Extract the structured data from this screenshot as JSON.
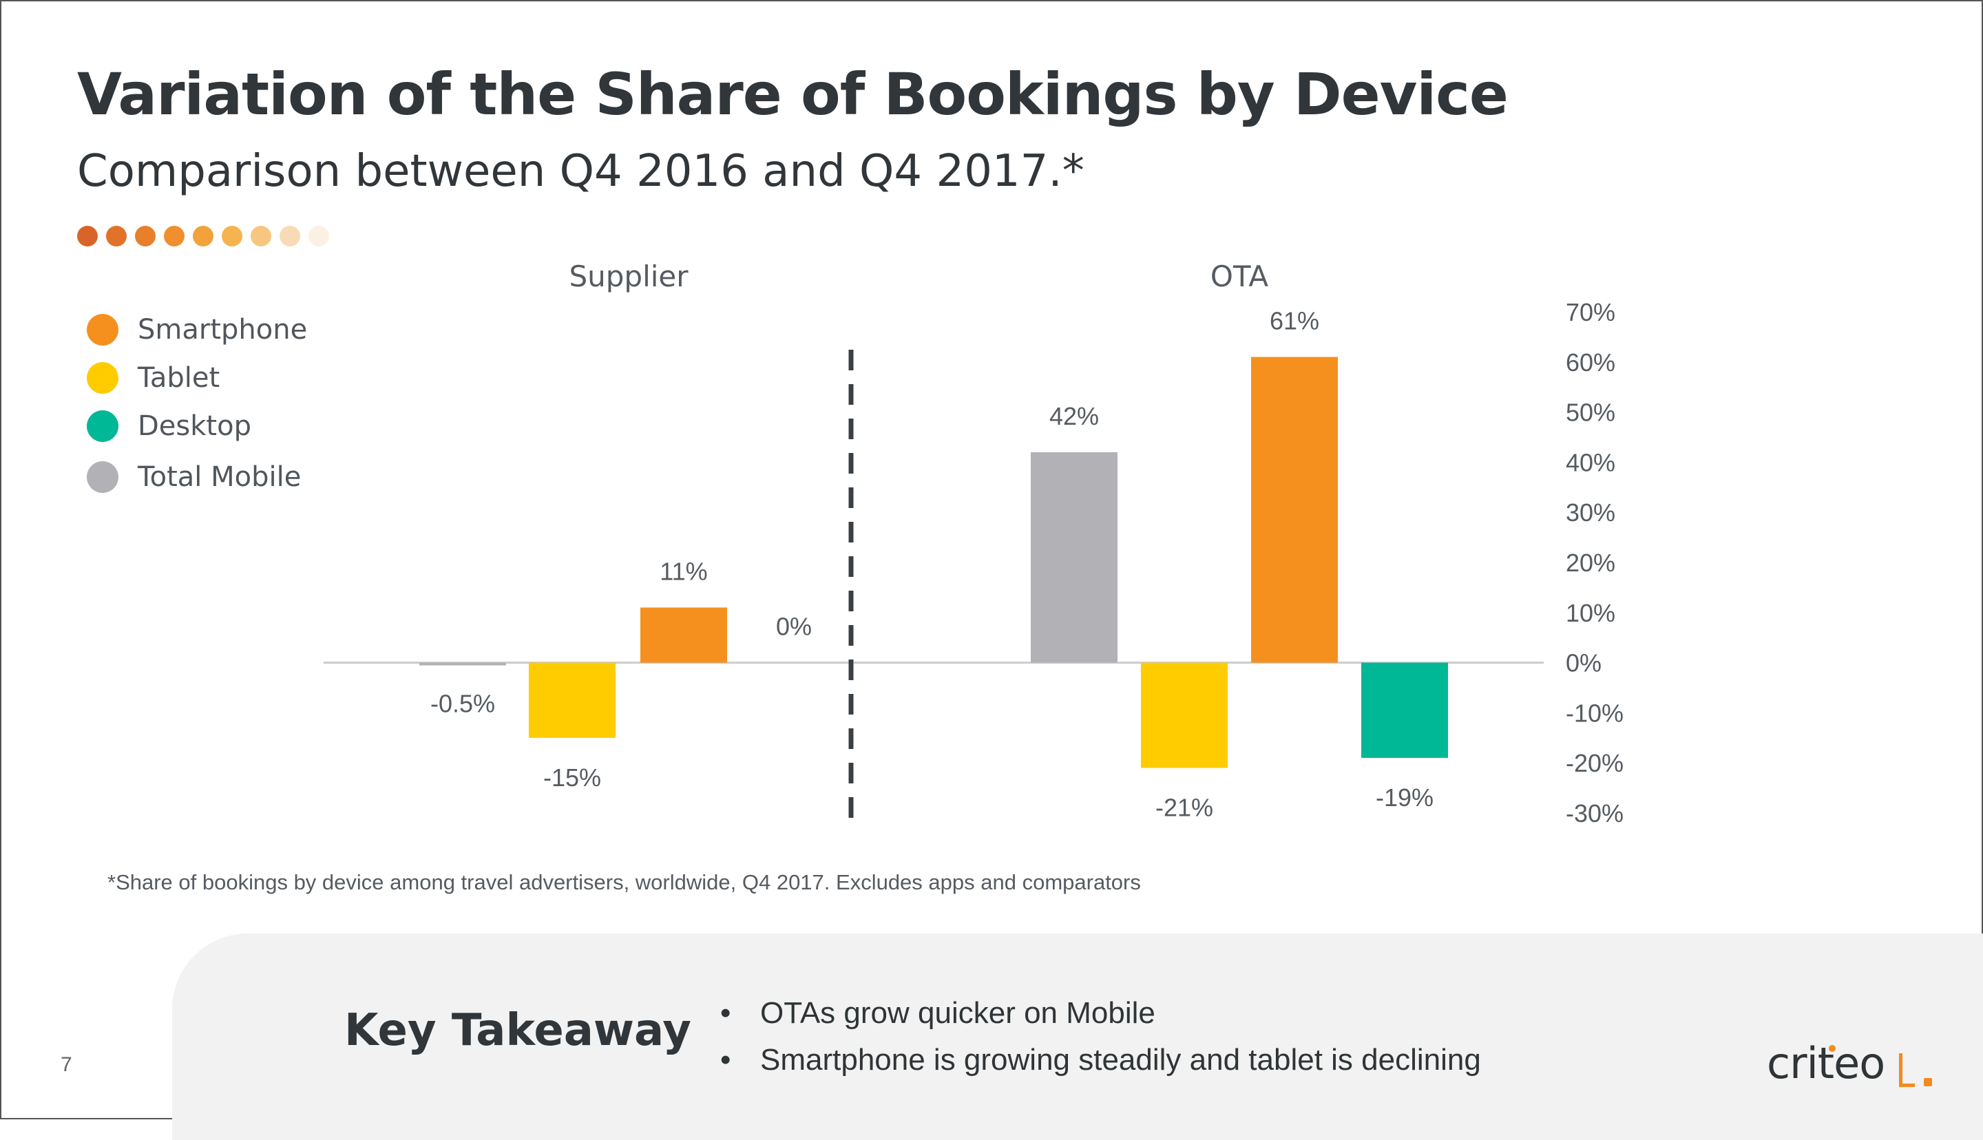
{
  "title": "Variation of the Share of Bookings by Device",
  "subtitle": "Comparison between Q4 2016 and Q4 2017.*",
  "decor_dots_colors": [
    "#d9642a",
    "#e0722a",
    "#e8802b",
    "#ef8f2e",
    "#f2a23a",
    "#f5b450",
    "#f7c782",
    "#f8dbb6",
    "#fbf0e3"
  ],
  "colors": {
    "smartphone": "#f5901f",
    "tablet": "#ffcc00",
    "desktop": "#00b896",
    "total_mobile": "#b2b2b6",
    "axis": "#cccccc",
    "label": "#555b61"
  },
  "legend": [
    {
      "label": "Smartphone",
      "color": "#f5901f"
    },
    {
      "label": "Tablet",
      "color": "#ffcc00"
    },
    {
      "label": "Desktop",
      "color": "#00b896"
    },
    {
      "label": "Total Mobile",
      "color": "#b2b2b6"
    }
  ],
  "chart_data": {
    "type": "bar",
    "categories": [
      "Supplier",
      "OTA"
    ],
    "series": [
      {
        "name": "Total Mobile",
        "values": [
          -0.5,
          42
        ],
        "labels": [
          "-0.5%",
          "42%"
        ]
      },
      {
        "name": "Tablet",
        "values": [
          -15,
          -21
        ],
        "labels": [
          "-15%",
          "-21%"
        ]
      },
      {
        "name": "Smartphone",
        "values": [
          11,
          61
        ],
        "labels": [
          "11%",
          "61%"
        ]
      },
      {
        "name": "Desktop",
        "values": [
          0,
          -19
        ],
        "labels": [
          "0%",
          "-19%"
        ]
      }
    ],
    "yticks": [
      "70%",
      "60%",
      "50%",
      "40%",
      "30%",
      "20%",
      "10%",
      "0%",
      "-10%",
      "-20%",
      "-30%"
    ],
    "ylim": [
      -30,
      70
    ],
    "grid": false,
    "legend_position": "left",
    "y_axis_position": "right",
    "divider": "dashed vertical line between Supplier and OTA"
  },
  "footnote": "*Share of bookings by device among travel advertisers, worldwide, Q4 2017. Excludes apps and comparators",
  "takeaway": {
    "title": "Key Takeaway",
    "bullet_char": "•",
    "bullets": [
      "OTAs grow quicker on Mobile",
      "Smartphone is growing steadily and tablet is declining"
    ]
  },
  "page_number": "7",
  "logo": {
    "text": "criteo"
  }
}
